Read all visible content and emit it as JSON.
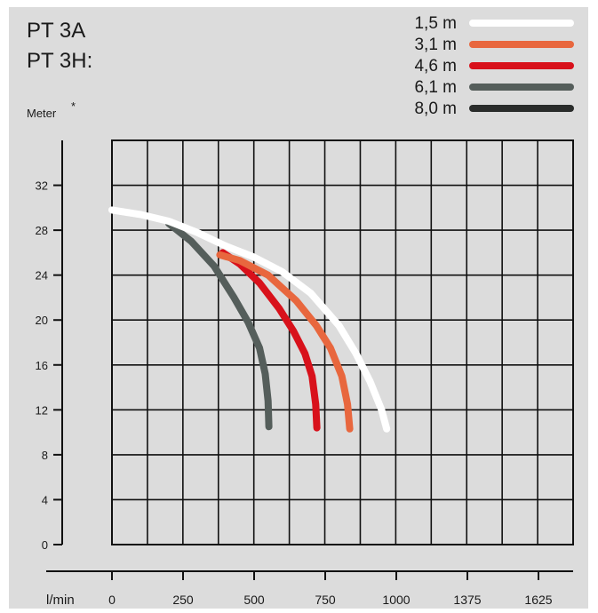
{
  "title_lines": [
    "PT 3A",
    "PT 3H:"
  ],
  "chart_data": {
    "type": "line",
    "ylabel": "Meter",
    "ylabel_mark": "*",
    "xlabel": "l/min",
    "x_tick_labels": [
      "0",
      "250",
      "500",
      "750",
      "1000",
      "1375",
      "1625"
    ],
    "y_tick_labels": [
      "0",
      "4",
      "8",
      "12",
      "16",
      "20",
      "24",
      "28",
      "32"
    ],
    "y_ticks": [
      0,
      4,
      8,
      12,
      16,
      20,
      24,
      28,
      32
    ],
    "xlim": [
      0,
      1625
    ],
    "ylim": [
      0,
      36
    ],
    "grid": true,
    "legend_position": "top-right",
    "series": [
      {
        "name": "1,5 m",
        "color": "#ffffff",
        "x": [
          0,
          100,
          200,
          300,
          400,
          500,
          600,
          700,
          800,
          860,
          910,
          950,
          968
        ],
        "y": [
          29.8,
          29.4,
          28.8,
          27.8,
          26.6,
          25.6,
          24.3,
          22.4,
          19.5,
          17.0,
          14.5,
          12.0,
          10.3
        ]
      },
      {
        "name": "3,1 m",
        "color": "#e8673e",
        "x": [
          380,
          450,
          550,
          650,
          720,
          770,
          810,
          830,
          838
        ],
        "y": [
          25.8,
          25.3,
          24.0,
          21.7,
          19.5,
          17.5,
          15.0,
          12.5,
          10.3
        ]
      },
      {
        "name": "4,6 m",
        "color": "#d8111b",
        "x": [
          390,
          450,
          520,
          590,
          640,
          680,
          705,
          718,
          722
        ],
        "y": [
          26.0,
          25.0,
          23.3,
          21.0,
          19.0,
          17.0,
          15.0,
          12.5,
          10.4
        ]
      },
      {
        "name": "6,1 m",
        "color": "#555e5b",
        "x": [
          200,
          280,
          360,
          430,
          480,
          520,
          540,
          550,
          553
        ],
        "y": [
          28.6,
          27.0,
          24.8,
          22.0,
          19.8,
          17.5,
          15.2,
          12.8,
          10.5
        ]
      },
      {
        "name": "8,0 m",
        "color": "#2a2c2b",
        "x": [],
        "y": []
      }
    ]
  }
}
